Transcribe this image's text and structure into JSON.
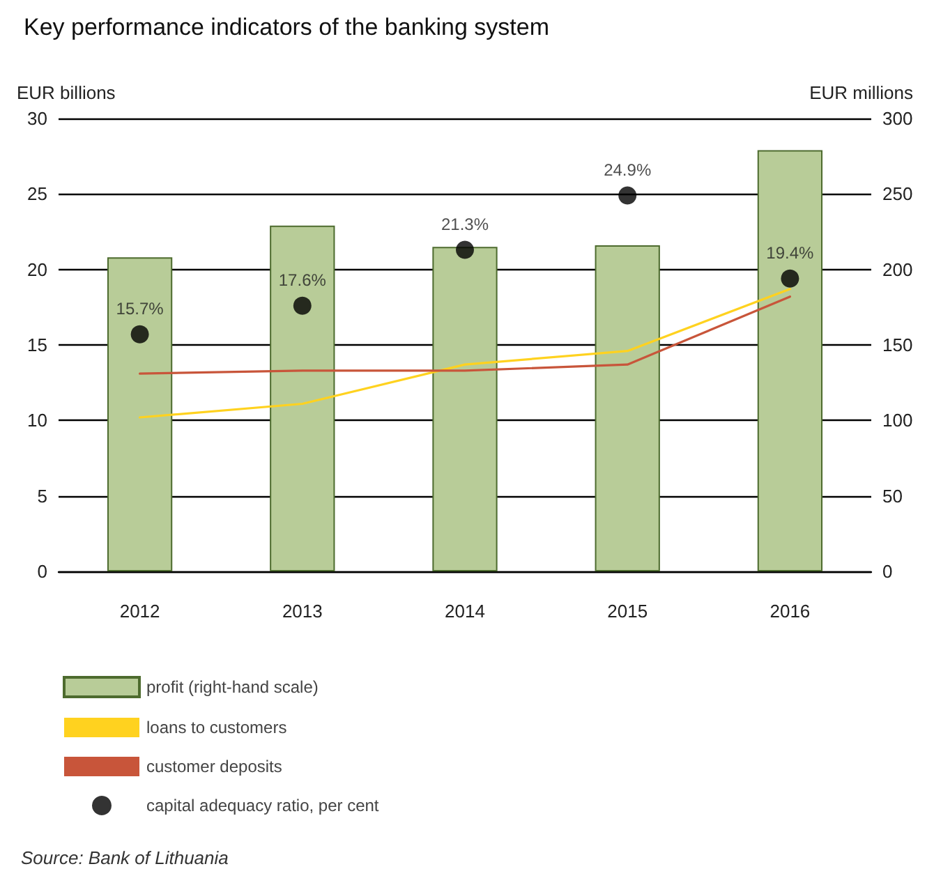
{
  "chart_data": {
    "type": "bar",
    "title": "Key performance indicators of the banking system",
    "ylabel": "EUR billions",
    "y2label": "EUR millions",
    "categories": [
      "2012",
      "2013",
      "2014",
      "2015",
      "2016"
    ],
    "series": [
      {
        "name": "profit (right-hand scale)",
        "axis": "y2",
        "color": "#b8cc98",
        "values": [
          208,
          229,
          215,
          216,
          279
        ]
      },
      {
        "name": "loans to customers",
        "type": "line",
        "color": "#ffd21f",
        "values": [
          10.2,
          11.1,
          13.7,
          14.6,
          18.7
        ]
      },
      {
        "name": "customer deposits",
        "type": "line",
        "color": "#c8553a",
        "values": [
          13.1,
          13.3,
          13.3,
          13.7,
          18.2
        ]
      },
      {
        "name": "capital adequacy ratio, per cent",
        "type": "scatter",
        "color": "#000000",
        "values": [
          15.7,
          17.6,
          21.3,
          24.9,
          19.4
        ],
        "value_labels": [
          "15.7%",
          "17.6%",
          "21.3%",
          "24.9%",
          "19.4%"
        ]
      }
    ],
    "ylim": [
      0,
      30
    ],
    "yticks": [
      0,
      5,
      10,
      15,
      20,
      25,
      30
    ],
    "y2lim": [
      0,
      300
    ],
    "y2ticks": [
      0,
      50,
      100,
      150,
      200,
      250,
      300
    ],
    "grid": "y",
    "legend": "bottom left",
    "annotations": [
      "Source: Bank of Lithuania"
    ]
  }
}
